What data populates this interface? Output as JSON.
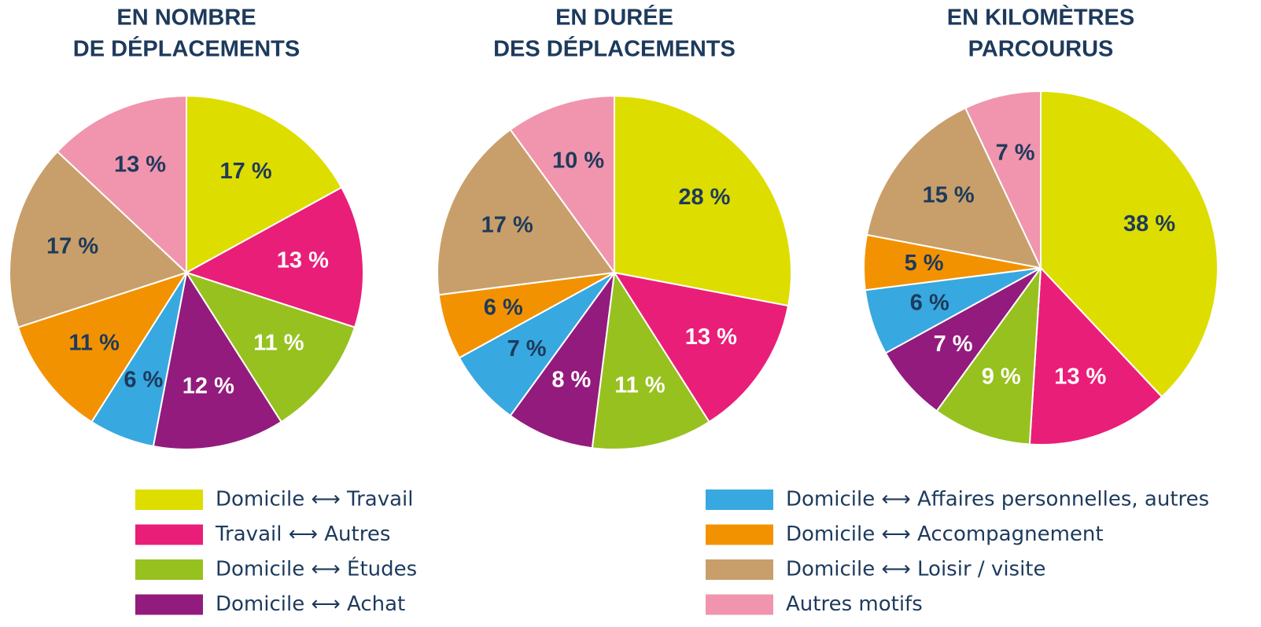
{
  "chart_data": [
    {
      "type": "pie",
      "title": [
        "EN NOMBRE",
        "DE DÉPLACEMENTS"
      ],
      "categories": [
        "Domicile ⟷ Travail",
        "Travail ⟷ Autres",
        "Domicile ⟷ Études",
        "Domicile ⟷ Achat",
        "Domicile ⟷ Affaires personnelles, autres",
        "Domicile ⟷ Accompagnement",
        "Domicile ⟷ Loisir / visite",
        "Autres motifs"
      ],
      "colors": [
        "#dedd00",
        "#e91e78",
        "#97c11f",
        "#931b7d",
        "#38a8e0",
        "#f39200",
        "#c89f6a",
        "#f095ad"
      ],
      "label_colors": [
        "#1d3a5c",
        "#ffffff",
        "#ffffff",
        "#ffffff",
        "#1d3a5c",
        "#1d3a5c",
        "#1d3a5c",
        "#1d3a5c"
      ],
      "values": [
        17,
        13,
        11,
        12,
        6,
        11,
        17,
        13
      ],
      "value_labels": [
        "17 %",
        "13 %",
        "11 %",
        "12 %",
        "6 %",
        "11 %",
        "17 %",
        "13 %"
      ]
    },
    {
      "type": "pie",
      "title": [
        "EN DURÉE",
        "DES DÉPLACEMENTS"
      ],
      "values": [
        28,
        13,
        11,
        8,
        7,
        6,
        17,
        10
      ],
      "value_labels": [
        "28 %",
        "13 %",
        "11 %",
        "8 %",
        "7 %",
        "6 %",
        "17 %",
        "10 %"
      ]
    },
    {
      "type": "pie",
      "title": [
        "EN KILOMÈTRES",
        "PARCOURUS"
      ],
      "values": [
        38,
        13,
        9,
        7,
        6,
        5,
        15,
        7
      ],
      "value_labels": [
        "38 %",
        "13 %",
        "9 %",
        "7 %",
        "6 %",
        "5 %",
        "15 %",
        "7 %"
      ]
    }
  ]
}
